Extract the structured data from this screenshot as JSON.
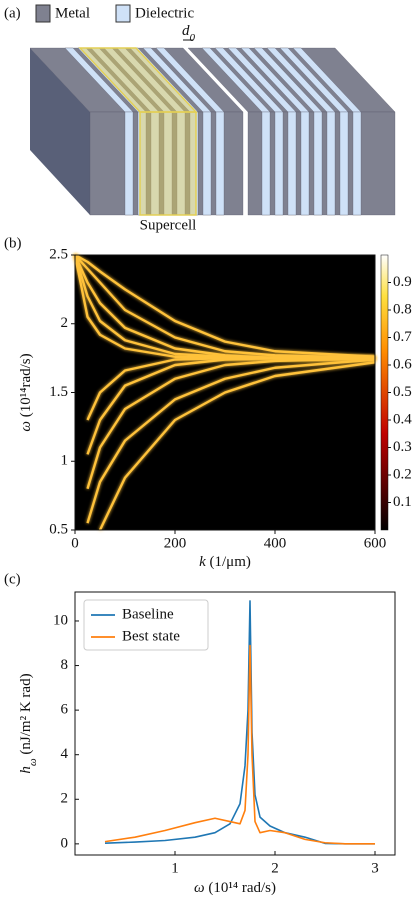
{
  "chart_data": [
    {
      "type": "diagram",
      "label": "(a)",
      "legend": [
        {
          "name": "Metal",
          "color": "#7f8190"
        },
        {
          "name": "Dielectric",
          "color": "#cfe1f7"
        }
      ],
      "gap_label": {
        "main": "d",
        "sub": "0"
      },
      "highlight_label": "Supercell",
      "highlight_color": "#e3cf55"
    },
    {
      "type": "heatmap",
      "label": "(b)",
      "xlabel": {
        "main": "k",
        "rest": " (1/μm)"
      },
      "ylabel": {
        "main": "ω",
        "rest": " (10¹⁴rad/s)"
      },
      "xlim": [
        0,
        600
      ],
      "xticks": [
        0,
        200,
        400,
        600
      ],
      "ylim": [
        0.5,
        2.5
      ],
      "yticks": [
        0.5,
        1,
        1.5,
        2,
        2.5
      ],
      "clim": [
        0,
        1
      ],
      "cticks": [
        0.1,
        0.2,
        0.3,
        0.4,
        0.5,
        0.6,
        0.7,
        0.8,
        0.9
      ],
      "color": "#ffc23a",
      "x": [
        0,
        25,
        50,
        100,
        200,
        300,
        400,
        600
      ],
      "series": [
        {
          "values": [
            2.5,
            2.45,
            2.38,
            2.25,
            2.02,
            1.87,
            1.8,
            1.76
          ]
        },
        {
          "values": [
            2.5,
            2.4,
            2.3,
            2.1,
            1.9,
            1.8,
            1.77,
            1.75
          ]
        },
        {
          "values": [
            2.5,
            2.3,
            2.15,
            1.97,
            1.82,
            1.77,
            1.75,
            1.75
          ]
        },
        {
          "values": [
            2.5,
            2.2,
            2.02,
            1.88,
            1.78,
            1.76,
            1.75,
            1.75
          ]
        },
        {
          "values": [
            2.5,
            2.05,
            1.92,
            1.82,
            1.76,
            1.75,
            1.75,
            1.75
          ]
        },
        {
          "values": [
            null,
            null,
            0.5,
            0.88,
            1.3,
            1.5,
            1.62,
            1.72
          ]
        },
        {
          "values": [
            null,
            0.55,
            0.85,
            1.15,
            1.45,
            1.6,
            1.68,
            1.74
          ]
        },
        {
          "values": [
            null,
            0.8,
            1.1,
            1.38,
            1.6,
            1.7,
            1.73,
            1.75
          ]
        },
        {
          "values": [
            null,
            1.05,
            1.3,
            1.55,
            1.7,
            1.74,
            1.75,
            1.75
          ]
        },
        {
          "values": [
            null,
            1.3,
            1.5,
            1.66,
            1.74,
            1.75,
            1.75,
            1.75
          ]
        }
      ]
    },
    {
      "type": "line",
      "label": "(c)",
      "xlabel": {
        "main": "ω",
        "rest": " (10¹⁴ rad/s)"
      },
      "ylabel": {
        "main": "h",
        "sub": "ω",
        "rest": " (nJ/m² K rad)"
      },
      "xlim": [
        0,
        3.2
      ],
      "xticks": [
        1,
        2,
        3
      ],
      "ylim": [
        -0.5,
        11.3
      ],
      "yticks": [
        0,
        2,
        4,
        6,
        8,
        10
      ],
      "x": [
        0.3,
        0.6,
        0.9,
        1.2,
        1.4,
        1.55,
        1.65,
        1.7,
        1.73,
        1.75,
        1.77,
        1.8,
        1.85,
        1.95,
        2.1,
        2.3,
        2.5,
        2.7,
        3.0
      ],
      "series": [
        {
          "name": "Baseline",
          "color": "#1f77b4",
          "values": [
            0.03,
            0.08,
            0.15,
            0.3,
            0.5,
            0.9,
            1.8,
            3.5,
            6,
            10.9,
            5,
            2.2,
            1.2,
            0.8,
            0.5,
            0.3,
            0.02,
            0,
            0
          ]
        },
        {
          "name": "Best state",
          "color": "#ff7f0e",
          "values": [
            0.1,
            0.3,
            0.6,
            0.95,
            1.15,
            1.0,
            0.9,
            1.5,
            4,
            8.9,
            4,
            1,
            0.5,
            0.6,
            0.5,
            0.2,
            0.05,
            0,
            0
          ]
        }
      ]
    }
  ]
}
